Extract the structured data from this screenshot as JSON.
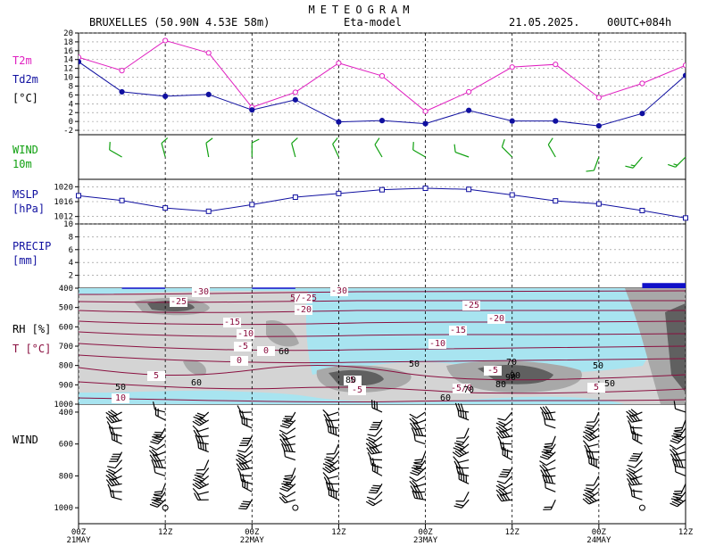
{
  "header": {
    "title": "METEOGRAM",
    "station": "BRUXELLES (50.90N 4.53E  58m)",
    "model": "Eta-model",
    "date": "21.05.2025.",
    "run": "00UTC+084h"
  },
  "panel_labels": {
    "t2m": "T2m",
    "td2m": "Td2m",
    "temp_unit": "[°C]",
    "wind": "WIND",
    "wind_height": "10m",
    "mslp": "MSLP",
    "mslp_unit": "[hPa]",
    "precip": "PRECIP",
    "precip_unit": "[mm]",
    "rh": "RH [%]",
    "t": "T [°C]",
    "wind_profile": "WIND"
  },
  "colors": {
    "t2m": "#e020c0",
    "td2m": "#1010a0",
    "wind10m": "#10a010",
    "mslp": "#1010a0",
    "precip_bar": "#1010c8",
    "sky_blue": "#a8e4f0",
    "temp_contour": "#8a1040",
    "rh_gray_light": "#d4d4d4",
    "rh_gray_mid": "#a8a8a8",
    "rh_gray_dark": "#606060"
  },
  "chart_data": [
    {
      "type": "line",
      "panel": "temperature",
      "x": [
        0,
        6,
        12,
        18,
        24,
        30,
        36,
        42,
        48,
        54,
        60,
        66,
        72,
        78,
        84
      ],
      "series": [
        {
          "name": "T2m",
          "values": [
            14.5,
            11.5,
            18.3,
            15.5,
            3.2,
            6.6,
            13.2,
            10.3,
            2.3,
            6.7,
            12.3,
            12.9,
            5.4,
            8.6,
            12.7
          ]
        },
        {
          "name": "Td2m",
          "values": [
            13.5,
            6.7,
            5.7,
            6.1,
            2.6,
            4.9,
            -0.1,
            0.2,
            -0.5,
            2.5,
            0.1,
            0.1,
            -1.0,
            1.8,
            10.4
          ]
        }
      ],
      "yticks": [
        20,
        18,
        16,
        14,
        12,
        10,
        8,
        6,
        4,
        2,
        0,
        -2
      ],
      "ylim": [
        -3,
        20
      ]
    },
    {
      "type": "barbs",
      "panel": "wind10m",
      "x": [
        6,
        12,
        18,
        24,
        30,
        36,
        42,
        48,
        54,
        60,
        66,
        72,
        78,
        84
      ],
      "direction_deg": [
        300,
        345,
        350,
        0,
        345,
        335,
        330,
        300,
        290,
        315,
        330,
        200,
        220,
        225
      ],
      "speed_kt": [
        10,
        10,
        10,
        10,
        10,
        10,
        10,
        10,
        10,
        10,
        10,
        10,
        15,
        15
      ]
    },
    {
      "type": "line",
      "panel": "mslp",
      "x": [
        0,
        6,
        12,
        18,
        24,
        30,
        36,
        42,
        48,
        54,
        60,
        66,
        72,
        78,
        84
      ],
      "series": [
        {
          "values": [
            1017.6,
            1016.3,
            1014.3,
            1013.4,
            1015.2,
            1017.2,
            1018.2,
            1019.2,
            1019.6,
            1019.3,
            1017.8,
            1016.2,
            1015.4,
            1013.6,
            1011.6
          ]
        }
      ],
      "yticks": [
        1020,
        1016,
        1012
      ],
      "ylim": [
        1010,
        1022
      ]
    },
    {
      "type": "bar",
      "panel": "precip",
      "x": [
        12,
        30,
        84
      ],
      "values": [
        0.1,
        0.1,
        0.8
      ],
      "yticks": [
        10,
        8,
        6,
        4,
        2
      ],
      "ylim": [
        0,
        10
      ]
    },
    {
      "type": "heatmap",
      "panel": "rh_t_cross_section",
      "yticks": [
        400,
        500,
        600,
        700,
        800,
        900,
        1000
      ],
      "ylim": [
        1000,
        400
      ],
      "temperature_contour_labels": [
        "-30",
        "-25",
        "-20",
        "-15",
        "-10",
        "-5",
        "0",
        "5",
        "10",
        "-30",
        "-25",
        "-20",
        "-15",
        "-10",
        "-5",
        "5",
        "5/-25",
        "-5",
        "5",
        "-5/0",
        "0"
      ],
      "rh_contour_labels": [
        "50",
        "60",
        "60",
        "70",
        "90",
        "80",
        "90",
        "80",
        "50",
        "60",
        "70",
        "50",
        "50"
      ]
    },
    {
      "type": "barbs",
      "panel": "wind_profile",
      "yticks": [
        400,
        600,
        800,
        1000
      ],
      "ylim": [
        1100,
        350
      ]
    }
  ],
  "x_axis": {
    "ticks": [
      {
        "hour": 0,
        "label": "00Z",
        "date": "21MAY"
      },
      {
        "hour": 12,
        "label": "12Z",
        "date": ""
      },
      {
        "hour": 24,
        "label": "00Z",
        "date": "22MAY"
      },
      {
        "hour": 36,
        "label": "12Z",
        "date": ""
      },
      {
        "hour": 48,
        "label": "00Z",
        "date": "23MAY"
      },
      {
        "hour": 60,
        "label": "12Z",
        "date": ""
      },
      {
        "hour": 72,
        "label": "00Z",
        "date": "24MAY"
      },
      {
        "hour": 84,
        "label": "12Z",
        "date": ""
      }
    ]
  }
}
